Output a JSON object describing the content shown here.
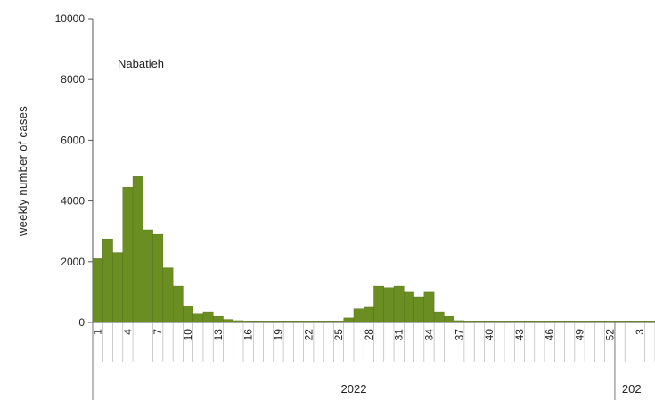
{
  "chart_data": {
    "type": "bar",
    "title": "",
    "annotation": "Nabatieh",
    "ylabel": "weekly number of cases",
    "xlabel": "",
    "ylim": [
      0,
      10000
    ],
    "yticks": [
      0,
      2000,
      4000,
      6000,
      8000,
      10000
    ],
    "bar_color": "#6b8e23",
    "bar_edge_color": "#4f6b16",
    "grid": false,
    "year_labels": [
      "2022",
      "202"
    ],
    "x_tick_labels": [
      "1",
      "4",
      "7",
      "10",
      "13",
      "16",
      "19",
      "22",
      "25",
      "28",
      "31",
      "34",
      "37",
      "40",
      "43",
      "46",
      "49",
      "52",
      "3"
    ],
    "categories": [
      "1",
      "2",
      "3",
      "4",
      "5",
      "6",
      "7",
      "8",
      "9",
      "10",
      "11",
      "12",
      "13",
      "14",
      "15",
      "16",
      "17",
      "18",
      "19",
      "20",
      "21",
      "22",
      "23",
      "24",
      "25",
      "26",
      "27",
      "28",
      "29",
      "30",
      "31",
      "32",
      "33",
      "34",
      "35",
      "36",
      "37",
      "38",
      "39",
      "40",
      "41",
      "42",
      "43",
      "44",
      "45",
      "46",
      "47",
      "48",
      "49",
      "50",
      "51",
      "52",
      "1",
      "2",
      "3",
      "4"
    ],
    "values": [
      2100,
      2750,
      2300,
      4450,
      4800,
      3050,
      2900,
      1800,
      1200,
      550,
      300,
      350,
      200,
      100,
      60,
      50,
      50,
      50,
      50,
      50,
      50,
      50,
      50,
      50,
      50,
      150,
      450,
      500,
      1200,
      1150,
      1200,
      1000,
      850,
      1000,
      350,
      200,
      60,
      50,
      50,
      50,
      50,
      50,
      50,
      50,
      50,
      50,
      50,
      50,
      50,
      50,
      50,
      50,
      50,
      50,
      50,
      50
    ]
  }
}
